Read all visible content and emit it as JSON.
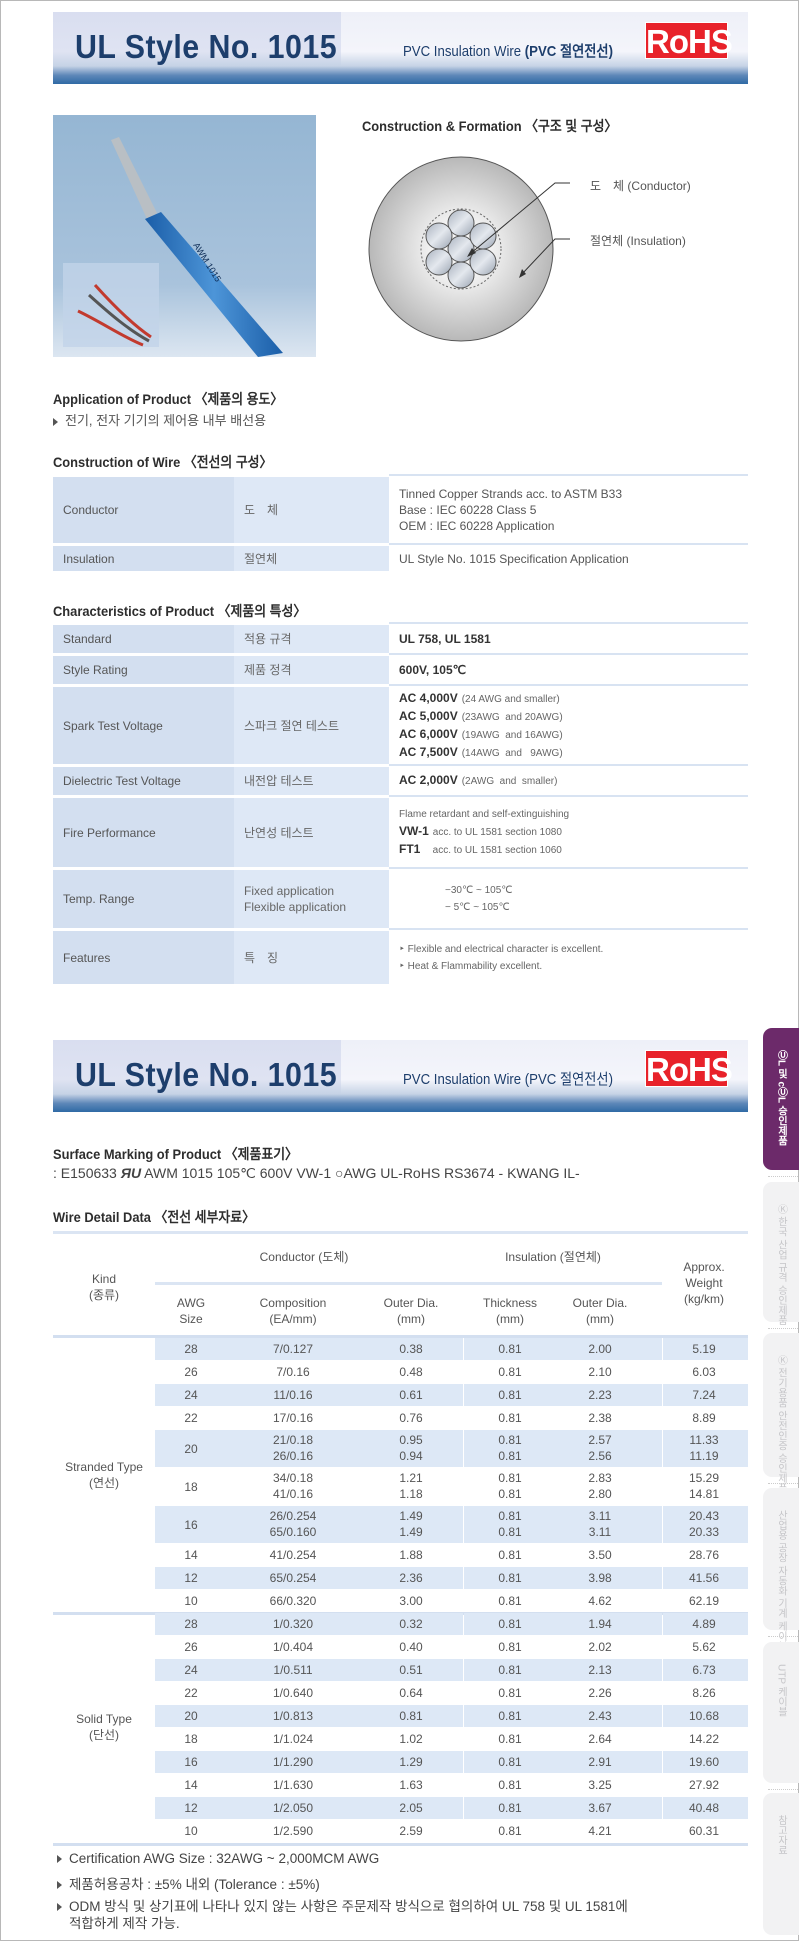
{
  "header": {
    "title": "UL Style No. 1015",
    "subtitle_en": "PVC Insulation Wire",
    "subtitle_ko": "(PVC 절연전선)",
    "rohs": "RoHS"
  },
  "photo": {
    "wire_label": "AWM 1015"
  },
  "construction_formation": {
    "heading": "Construction & Formation 〈구조 및 구성〉",
    "conductor_label": "도　체 (Conductor)",
    "insulation_label": "절연체 (Insulation)"
  },
  "application": {
    "heading": "Application of Product 〈제품의 용도〉",
    "text": "전기, 전자 기기의 제어용 내부 배선용"
  },
  "construction": {
    "heading": "Construction of Wire 〈전선의 구성〉",
    "rows": [
      {
        "en": "Conductor",
        "ko": [
          "도　체"
        ],
        "value": [
          {
            "t": "Tinned Copper Strands acc. to ASTM B33"
          },
          {
            "t": "Base : IEC 60228 Class 5"
          },
          {
            "t": "OEM : IEC 60228 Application"
          }
        ]
      },
      {
        "en": "Insulation",
        "ko": [
          "절연체"
        ],
        "value": [
          {
            "t": "UL Style No. 1015 Specification Application"
          }
        ]
      }
    ]
  },
  "characteristics": {
    "heading": "Characteristics of Product 〈제품의 특성〉",
    "rows": [
      {
        "en": "Standard",
        "ko": [
          "적용 규격"
        ],
        "value": [
          {
            "b": "UL 758, UL 1581"
          }
        ]
      },
      {
        "en": "Style Rating",
        "ko": [
          "제품 정격"
        ],
        "value": [
          {
            "b": "600V, 105℃"
          }
        ]
      },
      {
        "en": "Spark Test Voltage",
        "ko": [
          "스파크 절연 테스트"
        ],
        "value": [
          {
            "b": "AC 4,000V",
            "s": "(24 AWG and smaller)"
          },
          {
            "b": "AC 5,000V",
            "s": "(23AWG  and 20AWG)"
          },
          {
            "b": "AC 6,000V",
            "s": "(19AWG  and 16AWG)"
          },
          {
            "b": "AC 7,500V",
            "s": "(14AWG  and   9AWG)"
          }
        ]
      },
      {
        "en": "Dielectric Test Voltage",
        "ko": [
          "내전압 테스트"
        ],
        "value": [
          {
            "b": "AC 2,000V",
            "s": "(2AWG  and  smaller)"
          }
        ]
      },
      {
        "en": "Fire Performance",
        "ko": [
          "난연성 테스트"
        ],
        "value": [
          {
            "s": "Flame retardant and self-extinguishing"
          },
          {
            "b": "VW-1",
            "s": "acc. to UL 1581 section 1080"
          },
          {
            "b": "FT1",
            "s": "   acc. to UL 1581 section 1060"
          }
        ]
      },
      {
        "en": "Temp. Range",
        "ko": [
          "Fixed application",
          "Flexible application"
        ],
        "value": [
          {
            "s": "−30℃ ~ 105℃"
          },
          {
            "s": "− 5℃ ~ 105℃"
          }
        ]
      },
      {
        "en": "Features",
        "ko": [
          "특　징"
        ],
        "value": [
          {
            "s": "‣ Flexible and electrical character is excellent."
          },
          {
            "s": "‣ Heat & Flammability excellent."
          }
        ]
      }
    ]
  },
  "surface_marking": {
    "heading": "Surface Marking  of Product 〈제품표기〉",
    "prefix": ": E150633 ",
    "logo": "ЯU",
    "text": " AWM 1015  105℃ 600V VW-1 ○AWG  UL-RoHS RS3674   - KWANG IL-"
  },
  "wire_detail": {
    "heading": "Wire Detail Data 〈전선 세부자료〉",
    "headers": {
      "kind": "Kind",
      "kind_ko": "(종류)",
      "conductor": "Conductor (도체)",
      "insulation": "Insulation (절연체)",
      "weight": [
        "Approx.",
        "Weight",
        "(kg/km)"
      ],
      "awg": [
        "AWG",
        "Size"
      ],
      "composition": [
        "Composition",
        "(EA/mm)"
      ],
      "outer_dia": [
        "Outer Dia.",
        "(mm)"
      ],
      "thickness": [
        "Thickness",
        "(mm)"
      ],
      "ins_outer_dia": [
        "Outer Dia.",
        "(mm)"
      ]
    },
    "groups": [
      {
        "kind": "Stranded Type",
        "kind_ko": "(연선)",
        "rows": [
          {
            "awg": "28",
            "comp": [
              "7/0.127"
            ],
            "od": [
              "0.38"
            ],
            "th": [
              "0.81"
            ],
            "iod": [
              "2.00"
            ],
            "w": [
              "5.19"
            ]
          },
          {
            "awg": "26",
            "comp": [
              "7/0.16"
            ],
            "od": [
              "0.48"
            ],
            "th": [
              "0.81"
            ],
            "iod": [
              "2.10"
            ],
            "w": [
              "6.03"
            ]
          },
          {
            "awg": "24",
            "comp": [
              "11/0.16"
            ],
            "od": [
              "0.61"
            ],
            "th": [
              "0.81"
            ],
            "iod": [
              "2.23"
            ],
            "w": [
              "7.24"
            ]
          },
          {
            "awg": "22",
            "comp": [
              "17/0.16"
            ],
            "od": [
              "0.76"
            ],
            "th": [
              "0.81"
            ],
            "iod": [
              "2.38"
            ],
            "w": [
              "8.89"
            ]
          },
          {
            "awg": "20",
            "comp": [
              "21/0.18",
              "26/0.16"
            ],
            "od": [
              "0.95",
              "0.94"
            ],
            "th": [
              "0.81",
              "0.81"
            ],
            "iod": [
              "2.57",
              "2.56"
            ],
            "w": [
              "11.33",
              "11.19"
            ]
          },
          {
            "awg": "18",
            "comp": [
              "34/0.18",
              "41/0.16"
            ],
            "od": [
              "1.21",
              "1.18"
            ],
            "th": [
              "0.81",
              "0.81"
            ],
            "iod": [
              "2.83",
              "2.80"
            ],
            "w": [
              "15.29",
              "14.81"
            ]
          },
          {
            "awg": "16",
            "comp": [
              "26/0.254",
              "65/0.160"
            ],
            "od": [
              "1.49",
              "1.49"
            ],
            "th": [
              "0.81",
              "0.81"
            ],
            "iod": [
              "3.11",
              "3.11"
            ],
            "w": [
              "20.43",
              "20.33"
            ]
          },
          {
            "awg": "14",
            "comp": [
              "41/0.254"
            ],
            "od": [
              "1.88"
            ],
            "th": [
              "0.81"
            ],
            "iod": [
              "3.50"
            ],
            "w": [
              "28.76"
            ]
          },
          {
            "awg": "12",
            "comp": [
              "65/0.254"
            ],
            "od": [
              "2.36"
            ],
            "th": [
              "0.81"
            ],
            "iod": [
              "3.98"
            ],
            "w": [
              "41.56"
            ]
          },
          {
            "awg": "10",
            "comp": [
              "66/0.320"
            ],
            "od": [
              "3.00"
            ],
            "th": [
              "0.81"
            ],
            "iod": [
              "4.62"
            ],
            "w": [
              "62.19"
            ]
          }
        ]
      },
      {
        "kind": "Solid Type",
        "kind_ko": "(단선)",
        "rows": [
          {
            "awg": "28",
            "comp": [
              "1/0.320"
            ],
            "od": [
              "0.32"
            ],
            "th": [
              "0.81"
            ],
            "iod": [
              "1.94"
            ],
            "w": [
              "4.89"
            ]
          },
          {
            "awg": "26",
            "comp": [
              "1/0.404"
            ],
            "od": [
              "0.40"
            ],
            "th": [
              "0.81"
            ],
            "iod": [
              "2.02"
            ],
            "w": [
              "5.62"
            ]
          },
          {
            "awg": "24",
            "comp": [
              "1/0.511"
            ],
            "od": [
              "0.51"
            ],
            "th": [
              "0.81"
            ],
            "iod": [
              "2.13"
            ],
            "w": [
              "6.73"
            ]
          },
          {
            "awg": "22",
            "comp": [
              "1/0.640"
            ],
            "od": [
              "0.64"
            ],
            "th": [
              "0.81"
            ],
            "iod": [
              "2.26"
            ],
            "w": [
              "8.26"
            ]
          },
          {
            "awg": "20",
            "comp": [
              "1/0.813"
            ],
            "od": [
              "0.81"
            ],
            "th": [
              "0.81"
            ],
            "iod": [
              "2.43"
            ],
            "w": [
              "10.68"
            ]
          },
          {
            "awg": "18",
            "comp": [
              "1/1.024"
            ],
            "od": [
              "1.02"
            ],
            "th": [
              "0.81"
            ],
            "iod": [
              "2.64"
            ],
            "w": [
              "14.22"
            ]
          },
          {
            "awg": "16",
            "comp": [
              "1/1.290"
            ],
            "od": [
              "1.29"
            ],
            "th": [
              "0.81"
            ],
            "iod": [
              "2.91"
            ],
            "w": [
              "19.60"
            ]
          },
          {
            "awg": "14",
            "comp": [
              "1/1.630"
            ],
            "od": [
              "1.63"
            ],
            "th": [
              "0.81"
            ],
            "iod": [
              "3.25"
            ],
            "w": [
              "27.92"
            ]
          },
          {
            "awg": "12",
            "comp": [
              "1/2.050"
            ],
            "od": [
              "2.05"
            ],
            "th": [
              "0.81"
            ],
            "iod": [
              "3.67"
            ],
            "w": [
              "40.48"
            ]
          },
          {
            "awg": "10",
            "comp": [
              "1/2.590"
            ],
            "od": [
              "2.59"
            ],
            "th": [
              "0.81"
            ],
            "iod": [
              "4.21"
            ],
            "w": [
              "60.31"
            ]
          }
        ]
      }
    ]
  },
  "notes": [
    "Certification AWG Size : 32AWG ~ 2,000MCM AWG",
    "제품허용공차 : ±5% 내외 (Tolerance : ±5%)",
    "ODM 방식 및 상기표에 나타나 있지 않는 사항은 주문제작 방식으로 협의하여 UL 758 및 UL 1581에",
    "적합하게 제작 가능."
  ],
  "side_tabs": [
    {
      "label": "ⓊL 및 cⓊL 승인제품",
      "active": true
    },
    {
      "label": "Ⓚ 한국 산업 규격 승인제품",
      "active": false
    },
    {
      "label": "Ⓚ 전기용품 안전인증 승인제품 및 일반제품",
      "active": false
    },
    {
      "label": "산업용 공장 자동화 기계 케이블",
      "active": false
    },
    {
      "label": "UTP 케이블",
      "active": false
    },
    {
      "label": "참고자료",
      "active": false
    }
  ],
  "colors": {
    "title": "#1d3e6c",
    "rohs": "#e8222a",
    "tab_active": "#6c2a6a",
    "cell_dark": "#d3dff0",
    "cell_light": "#dee8f6",
    "row_shade": "#dde8f6"
  }
}
